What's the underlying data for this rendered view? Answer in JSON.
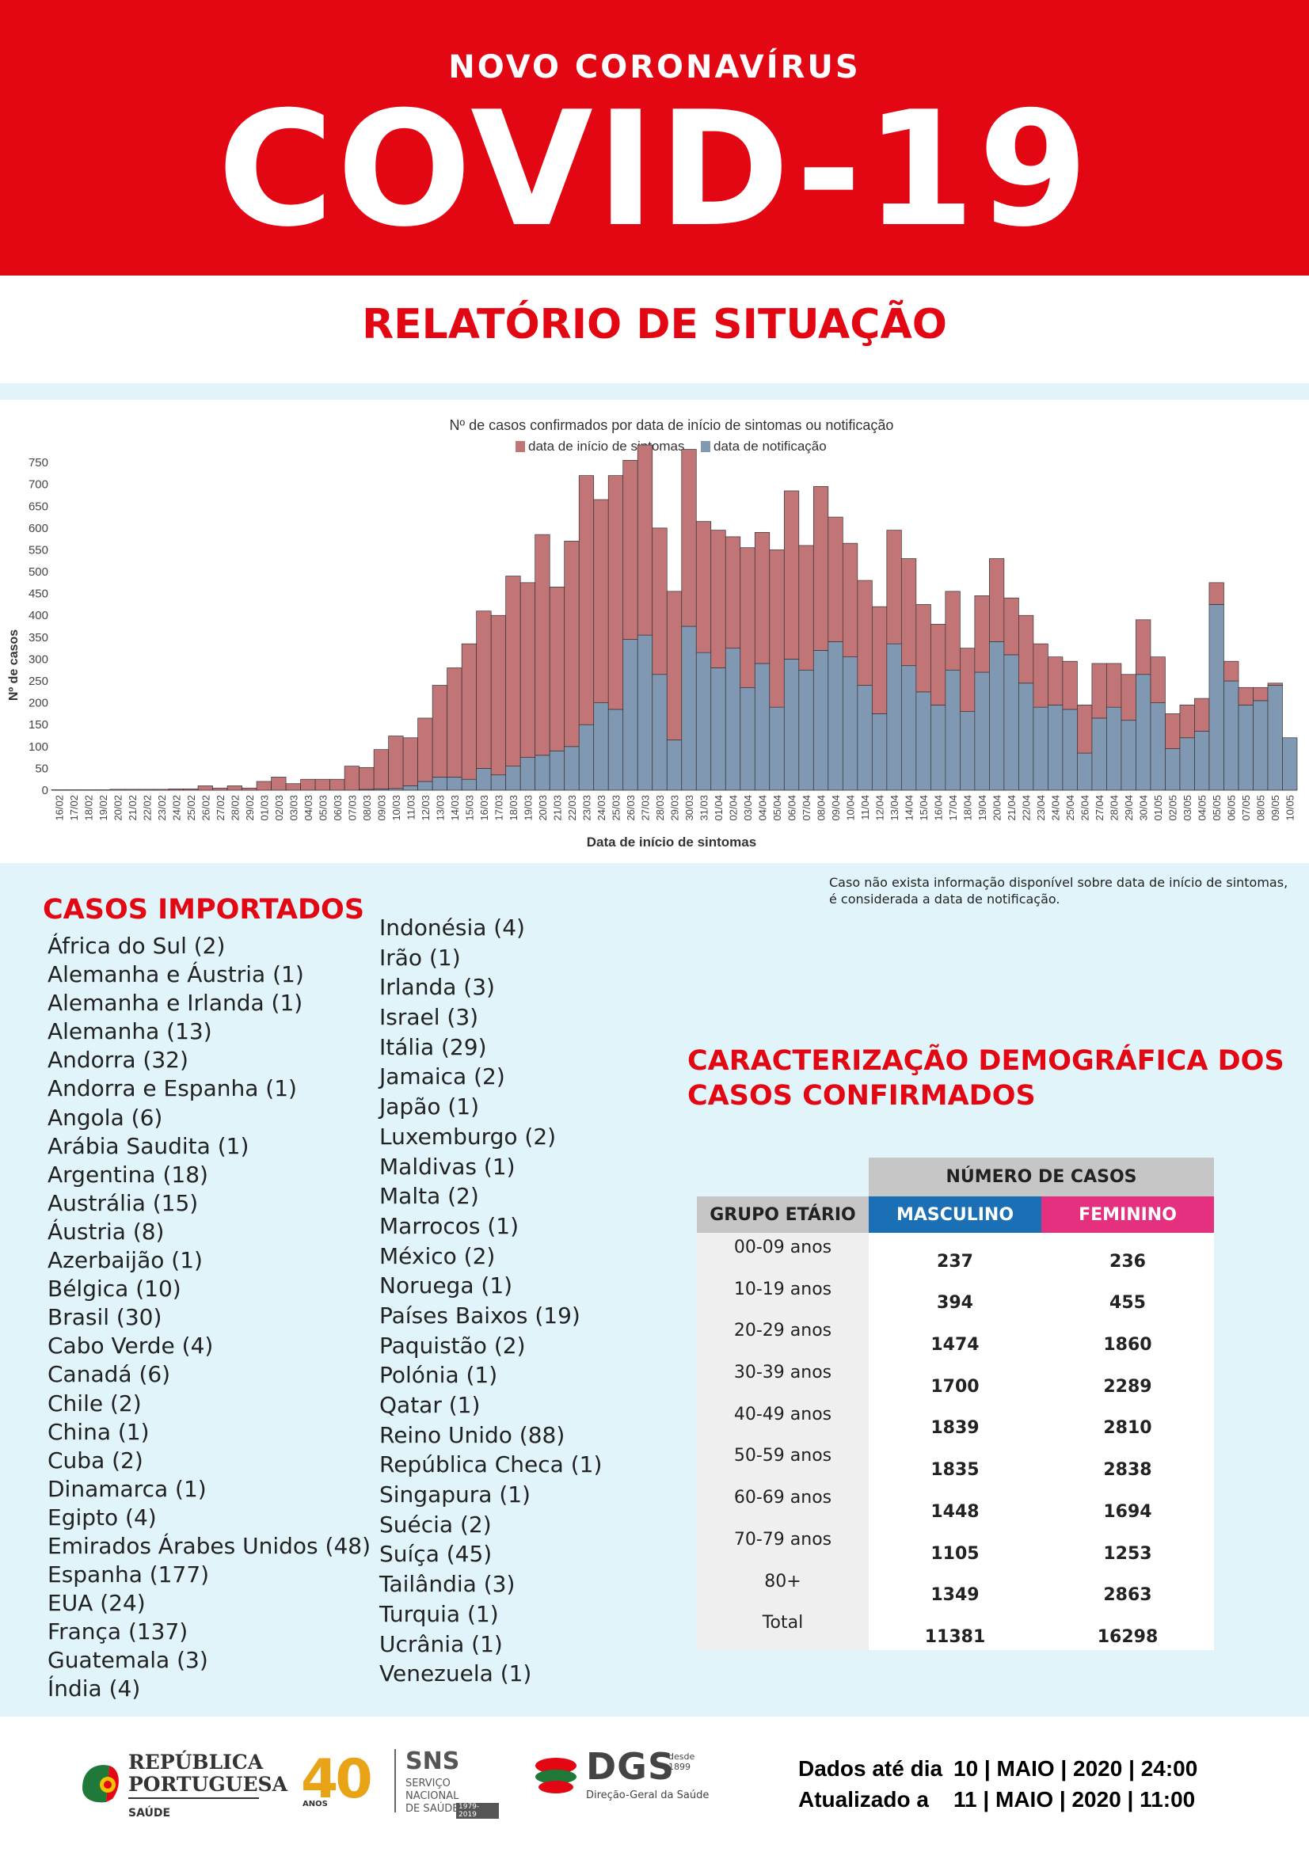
{
  "header": {
    "subtitle": "NOVO CORONAVÍRUS",
    "title": "COVID-19",
    "report_title": "RELATÓRIO DE SITUAÇÃO"
  },
  "colors": {
    "brand_red": "#e30613",
    "onset": "#c27577",
    "notification": "#8098b1",
    "masculino": "#1b6fb5",
    "feminino": "#e5307f"
  },
  "chart_data": {
    "type": "bar",
    "stacked": true,
    "title": "Nº de casos confirmados por data de início de sintomas ou notificação",
    "xlabel": "Data de início de sintomas",
    "ylabel": "Nº de casos",
    "ylim": [
      0,
      790
    ],
    "yticks": [
      0,
      50,
      100,
      150,
      200,
      250,
      300,
      350,
      400,
      450,
      500,
      550,
      600,
      650,
      700,
      750
    ],
    "legend_position": "top-center",
    "categories": [
      "16/02",
      "17/02",
      "18/02",
      "19/02",
      "20/02",
      "21/02",
      "22/02",
      "23/02",
      "24/02",
      "25/02",
      "26/02",
      "27/02",
      "28/02",
      "29/02",
      "01/03",
      "02/03",
      "03/03",
      "04/03",
      "05/03",
      "06/03",
      "07/03",
      "08/03",
      "09/03",
      "10/03",
      "11/03",
      "12/03",
      "13/03",
      "14/03",
      "15/03",
      "16/03",
      "17/03",
      "18/03",
      "19/03",
      "20/03",
      "21/03",
      "22/03",
      "23/03",
      "24/03",
      "25/03",
      "26/03",
      "27/03",
      "28/03",
      "29/03",
      "30/03",
      "31/03",
      "01/04",
      "02/04",
      "03/04",
      "04/04",
      "05/04",
      "06/04",
      "07/04",
      "08/04",
      "09/04",
      "10/04",
      "11/04",
      "12/04",
      "13/04",
      "14/04",
      "15/04",
      "16/04",
      "17/04",
      "18/04",
      "19/04",
      "20/04",
      "21/04",
      "22/04",
      "23/04",
      "24/04",
      "25/04",
      "26/04",
      "27/04",
      "28/04",
      "29/04",
      "30/04",
      "01/05",
      "02/05",
      "03/05",
      "04/05",
      "05/05",
      "06/05",
      "07/05",
      "08/05",
      "09/05",
      "10/05"
    ],
    "series": [
      {
        "name": "data de notificação",
        "values": [
          0,
          0,
          0,
          0,
          0,
          0,
          0,
          0,
          0,
          0,
          0,
          0,
          0,
          0,
          0,
          0,
          0,
          0,
          0,
          0,
          0,
          2,
          3,
          4,
          10,
          20,
          30,
          30,
          25,
          50,
          35,
          55,
          75,
          80,
          90,
          100,
          150,
          200,
          185,
          345,
          355,
          265,
          115,
          375,
          315,
          280,
          325,
          235,
          290,
          190,
          300,
          275,
          320,
          340,
          305,
          240,
          175,
          335,
          285,
          225,
          195,
          275,
          180,
          270,
          340,
          310,
          245,
          190,
          195,
          185,
          85,
          165,
          190,
          160,
          265,
          200,
          95,
          120,
          135,
          425,
          250,
          195,
          205,
          240,
          120
        ]
      },
      {
        "name": "data de início de sintomas",
        "values": [
          1,
          1,
          1,
          1,
          2,
          2,
          2,
          2,
          3,
          3,
          10,
          5,
          10,
          5,
          20,
          30,
          15,
          25,
          25,
          25,
          55,
          50,
          90,
          120,
          110,
          145,
          210,
          250,
          310,
          360,
          365,
          435,
          400,
          505,
          375,
          470,
          570,
          465,
          535,
          410,
          435,
          335,
          340,
          405,
          300,
          315,
          255,
          320,
          300,
          360,
          385,
          285,
          375,
          285,
          260,
          240,
          245,
          260,
          245,
          200,
          185,
          180,
          145,
          175,
          190,
          130,
          155,
          145,
          110,
          110,
          110,
          125,
          100,
          105,
          125,
          105,
          80,
          75,
          75,
          50,
          45,
          40,
          30,
          5,
          0
        ]
      }
    ]
  },
  "chart_note": "Caso não exista informação disponível sobre data de início de sintomas, é considerada a data de notificação.",
  "imported": {
    "title": "CASOS IMPORTADOS",
    "col1": [
      "África do Sul (2)",
      "Alemanha e Áustria (1)",
      "Alemanha e Irlanda (1)",
      "Alemanha (13)",
      "Andorra (32)",
      "Andorra e Espanha (1)",
      "Angola (6)",
      "Arábia Saudita (1)",
      "Argentina (18)",
      "Austrália (15)",
      "Áustria (8)",
      "Azerbaijão (1)",
      "Bélgica (10)",
      "Brasil (30)",
      "Cabo Verde (4)",
      "Canadá (6)",
      "Chile (2)",
      "China (1)",
      "Cuba (2)",
      "Dinamarca (1)",
      "Egipto (4)",
      "Emirados Árabes Unidos (48)",
      "Espanha (177)",
      "EUA (24)",
      "França (137)",
      "Guatemala (3)",
      "Índia (4)"
    ],
    "col2": [
      "Indonésia (4)",
      "Irão (1)",
      "Irlanda (3)",
      "Israel (3)",
      "Itália (29)",
      "Jamaica (2)",
      "Japão (1)",
      "Luxemburgo (2)",
      "Maldivas (1)",
      "Malta (2)",
      "Marrocos (1)",
      "México (2)",
      "Noruega (1)",
      "Países Baixos (19)",
      "Paquistão (2)",
      "Polónia (1)",
      "Qatar (1)",
      "Reino Unido (88)",
      "República Checa (1)",
      "Singapura (1)",
      "Suécia (2)",
      "Suíça (45)",
      "Tailândia (3)",
      "Turquia (1)",
      "Ucrânia (1)",
      "Venezuela (1)"
    ]
  },
  "demographics": {
    "title_line1": "CARACTERIZAÇÃO DEMOGRÁFICA DOS",
    "title_line2": "CASOS CONFIRMADOS",
    "numero_header": "NÚMERO DE CASOS",
    "grupo_header": "GRUPO ETÁRIO",
    "masculino_header": "MASCULINO",
    "feminino_header": "FEMININO",
    "rows": [
      {
        "age": "00-09 anos",
        "m": "237",
        "f": "236"
      },
      {
        "age": "10-19 anos",
        "m": "394",
        "f": "455"
      },
      {
        "age": "20-29 anos",
        "m": "1474",
        "f": "1860"
      },
      {
        "age": "30-39 anos",
        "m": "1700",
        "f": "2289"
      },
      {
        "age": "40-49 anos",
        "m": "1839",
        "f": "2810"
      },
      {
        "age": "50-59 anos",
        "m": "1835",
        "f": "2838"
      },
      {
        "age": "60-69 anos",
        "m": "1448",
        "f": "1694"
      },
      {
        "age": "70-79 anos",
        "m": "1105",
        "f": "1253"
      },
      {
        "age": "80+",
        "m": "1349",
        "f": "2863"
      },
      {
        "age": "Total",
        "m": "11381",
        "f": "16298"
      }
    ]
  },
  "footer": {
    "logo_republica_line1": "REPÚBLICA",
    "logo_republica_line2": "PORTUGUESA",
    "logo_saude": "SAÚDE",
    "logo_40": "40",
    "logo_anos": "ANOS",
    "logo_sns": "SNS",
    "logo_sns_line1": "SERVIÇO NACIONAL",
    "logo_sns_line2": "DE SAÚDE",
    "logo_sns_years": "1979-2019",
    "logo_dgs": "DGS",
    "logo_dgs_desde": "desde",
    "logo_dgs_year": "1899",
    "logo_dgs_sub": "Direção-Geral da Saúde",
    "dados_label": "Dados até dia",
    "dados_value": "10 | MAIO | 2020 | 24:00",
    "atualizado_label": "Atualizado a",
    "atualizado_value": "11 | MAIO | 2020 | 11:00"
  }
}
